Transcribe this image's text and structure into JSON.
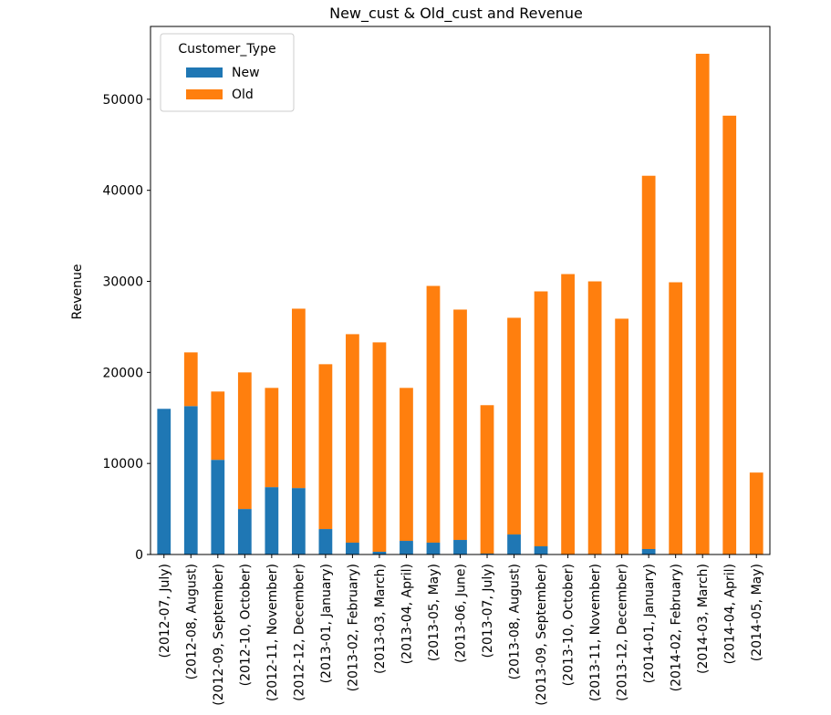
{
  "chart_data": {
    "type": "bar",
    "stacked": true,
    "title": "New_cust & Old_cust and Revenue",
    "xlabel": "",
    "ylabel": "Revenue",
    "ylim": [
      0,
      58000
    ],
    "yticks": [
      0,
      10000,
      20000,
      30000,
      40000,
      50000
    ],
    "grid": false,
    "legend": {
      "title": "Customer_Type",
      "position": "top-left",
      "entries": [
        "New",
        "Old"
      ]
    },
    "categories": [
      "(2012-07, July)",
      "(2012-08, August)",
      "(2012-09, September)",
      "(2012-10, October)",
      "(2012-11, November)",
      "(2012-12, December)",
      "(2013-01, January)",
      "(2013-02, February)",
      "(2013-03, March)",
      "(2013-04, April)",
      "(2013-05, May)",
      "(2013-06, June)",
      "(2013-07, July)",
      "(2013-08, August)",
      "(2013-09, September)",
      "(2013-10, October)",
      "(2013-11, November)",
      "(2013-12, December)",
      "(2014-01, January)",
      "(2014-02, February)",
      "(2014-03, March)",
      "(2014-04, April)",
      "(2014-05, May)"
    ],
    "series": [
      {
        "name": "New",
        "color": "#1f77b4",
        "values": [
          16000,
          16300,
          10400,
          5000,
          7400,
          7300,
          2800,
          1300,
          300,
          1500,
          1300,
          1600,
          100,
          2200,
          900,
          0,
          0,
          0,
          600,
          0,
          0,
          0,
          0
        ]
      },
      {
        "name": "Old",
        "color": "#ff7f0e",
        "values": [
          0,
          5900,
          7500,
          15000,
          10900,
          19700,
          18100,
          22900,
          23000,
          16800,
          28200,
          25300,
          16300,
          23800,
          28000,
          30800,
          30000,
          25900,
          41000,
          29900,
          55000,
          48200,
          9000
        ]
      }
    ]
  }
}
